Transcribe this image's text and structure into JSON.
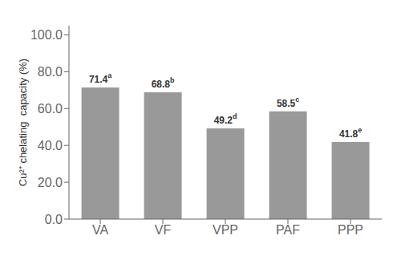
{
  "chart_data": {
    "type": "bar",
    "categories": [
      "VA",
      "VF",
      "VPP",
      "PAF",
      "PPP"
    ],
    "values": [
      71.4,
      68.8,
      49.2,
      58.5,
      41.8
    ],
    "color": "#999999",
    "ylabel": "Cu²⁺ chelating  capacity (%)",
    "ylim": [
      0,
      105
    ],
    "yticks": [
      {
        "value": 0,
        "label": "0.0"
      },
      {
        "value": 20,
        "label": "20.0"
      },
      {
        "value": 40,
        "label": "40.0"
      },
      {
        "value": 60,
        "label": "60.0"
      },
      {
        "value": 80,
        "label": "80.0"
      },
      {
        "value": 100,
        "label": "100.0"
      }
    ],
    "data_labels": true,
    "annotations": [
      {
        "category": "VA",
        "text": "a"
      },
      {
        "category": "VF",
        "text": "b"
      },
      {
        "category": "VPP",
        "text": "d"
      },
      {
        "category": "PAF",
        "text": "c"
      },
      {
        "category": "PPP",
        "text": "e"
      }
    ],
    "grid": false
  }
}
